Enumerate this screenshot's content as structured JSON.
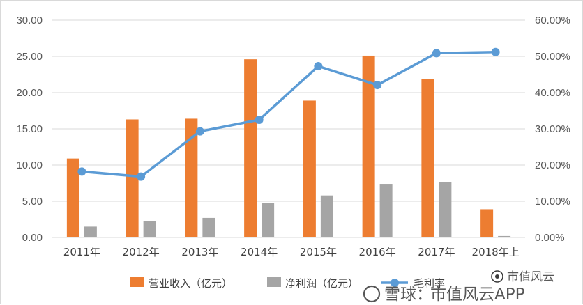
{
  "chart_data": {
    "type": "bar+line",
    "categories": [
      "2011年",
      "2012年",
      "2013年",
      "2014年",
      "2015年",
      "2016年",
      "2017年",
      "2018年上"
    ],
    "series": [
      {
        "name": "营业收入（亿元）",
        "type": "bar",
        "axis": "left",
        "color": "#ed7d31",
        "values": [
          10.9,
          16.3,
          16.4,
          24.6,
          18.9,
          25.1,
          21.9,
          3.9
        ]
      },
      {
        "name": "净利润（亿元）",
        "type": "bar",
        "axis": "left",
        "color": "#a5a5a5",
        "values": [
          1.5,
          2.3,
          2.7,
          4.8,
          5.8,
          7.4,
          7.6,
          0.2
        ]
      },
      {
        "name": "毛利率",
        "type": "line",
        "axis": "right",
        "color": "#5b9bd5",
        "values": [
          18.2,
          16.8,
          29.3,
          32.5,
          47.3,
          42.1,
          50.9,
          51.2
        ]
      }
    ],
    "left_axis": {
      "ylim": [
        0,
        30
      ],
      "ticks": [
        "0.00",
        "5.00",
        "10.00",
        "15.00",
        "20.00",
        "25.00",
        "30.00"
      ]
    },
    "right_axis": {
      "ylim": [
        0,
        60
      ],
      "ticks": [
        "0.00%",
        "10.00%",
        "20.00%",
        "30.00%",
        "40.00%",
        "50.00%",
        "60.00%"
      ]
    },
    "grid": true,
    "legend_position": "bottom"
  },
  "watermark": {
    "brand1": "雪球：",
    "brand2": "市值风云APP",
    "badge": "市值风云"
  }
}
